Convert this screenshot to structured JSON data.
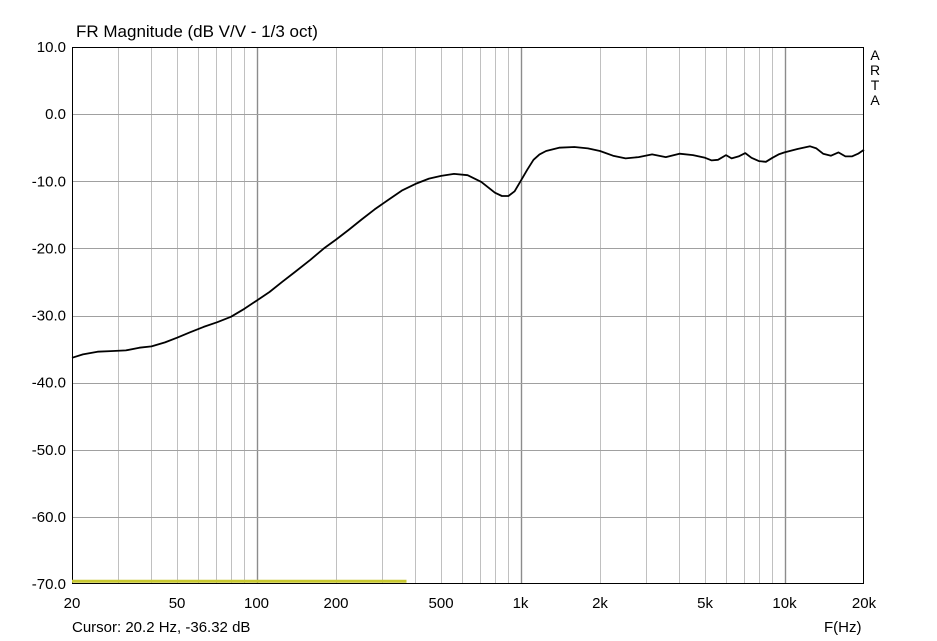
{
  "chart_data": {
    "type": "line",
    "title": "FR Magnitude (dB V/V - 1/3 oct)",
    "xlabel": "F(Hz)",
    "ylabel": "",
    "x_scale": "log",
    "xlim": [
      20,
      20000
    ],
    "ylim": [
      -70,
      10
    ],
    "grid": true,
    "x_tick_values": [
      20,
      50,
      100,
      200,
      500,
      1000,
      2000,
      5000,
      10000,
      20000
    ],
    "x_tick_labels": [
      "20",
      "50",
      "100",
      "200",
      "500",
      "1k",
      "2k",
      "5k",
      "10k",
      "20k"
    ],
    "y_tick_values": [
      10,
      0,
      -10,
      -20,
      -30,
      -40,
      -50,
      -60,
      -70
    ],
    "y_tick_labels": [
      "10.0",
      "0.0",
      "-10.0",
      "-20.0",
      "-30.0",
      "-40.0",
      "-50.0",
      "-60.0",
      "-70.0"
    ],
    "series": [
      {
        "color": "#000000",
        "x": [
          20,
          22,
          25,
          28,
          32,
          36,
          40,
          45,
          50,
          56,
          63,
          71,
          80,
          90,
          100,
          112,
          125,
          140,
          160,
          180,
          200,
          224,
          250,
          280,
          315,
          355,
          400,
          450,
          500,
          560,
          630,
          710,
          800,
          850,
          900,
          950,
          1000,
          1060,
          1120,
          1180,
          1250,
          1400,
          1600,
          1800,
          2000,
          2240,
          2500,
          2800,
          3150,
          3550,
          4000,
          4500,
          5000,
          5300,
          5600,
          6000,
          6300,
          6700,
          7100,
          7500,
          8000,
          8500,
          9000,
          9500,
          10000,
          11200,
          12500,
          13200,
          14000,
          15000,
          16000,
          17000,
          18000,
          19000,
          20000
        ],
        "values": [
          -36.3,
          -35.8,
          -35.4,
          -35.3,
          -35.2,
          -34.8,
          -34.6,
          -34.0,
          -33.3,
          -32.5,
          -31.7,
          -31.0,
          -30.2,
          -29.0,
          -27.8,
          -26.5,
          -25.0,
          -23.5,
          -21.7,
          -20.0,
          -18.7,
          -17.2,
          -15.7,
          -14.2,
          -12.8,
          -11.4,
          -10.4,
          -9.6,
          -9.2,
          -8.9,
          -9.1,
          -10.1,
          -11.7,
          -12.2,
          -12.2,
          -11.5,
          -10.0,
          -8.3,
          -6.8,
          -6.0,
          -5.5,
          -5.0,
          -4.9,
          -5.1,
          -5.5,
          -6.2,
          -6.6,
          -6.4,
          -6.0,
          -6.4,
          -5.9,
          -6.1,
          -6.5,
          -6.9,
          -6.8,
          -6.1,
          -6.6,
          -6.3,
          -5.8,
          -6.5,
          -7.0,
          -7.1,
          -6.5,
          -6.0,
          -5.7,
          -5.2,
          -4.8,
          -5.1,
          -5.9,
          -6.2,
          -5.7,
          -6.3,
          -6.3,
          -5.9,
          -5.3
        ]
      },
      {
        "color": "#c8c832",
        "x": [
          20,
          370
        ],
        "values": [
          -69.6,
          -69.6
        ]
      }
    ]
  },
  "side_label": [
    "A",
    "R",
    "T",
    "A"
  ],
  "cursor_text": "Cursor: 20.2 Hz, -36.32 dB",
  "xunit_text": "F(Hz)"
}
